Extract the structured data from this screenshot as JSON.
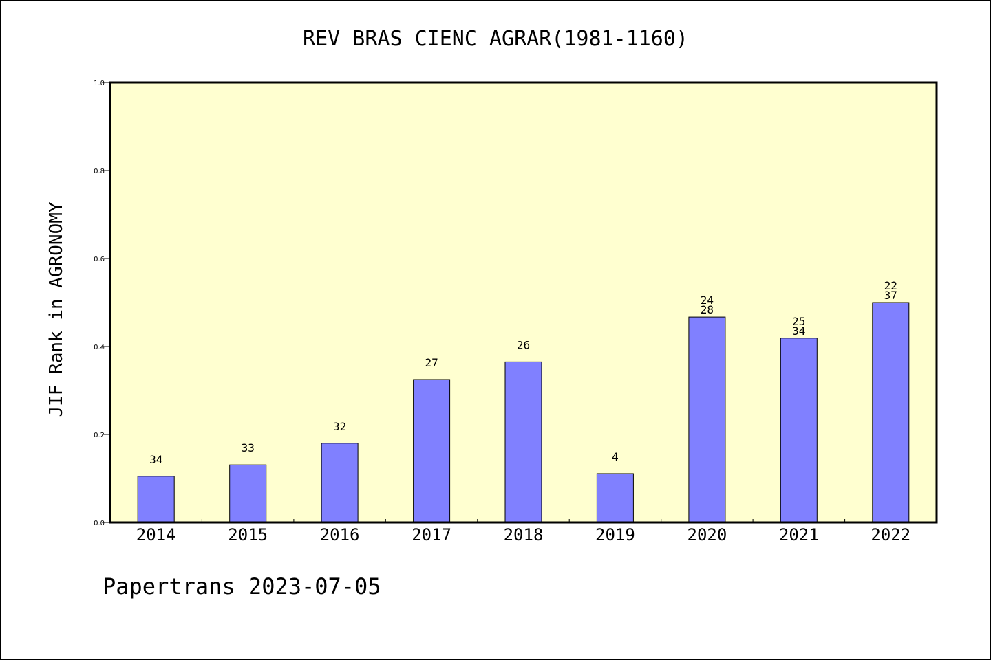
{
  "chart_data": {
    "type": "bar",
    "title": "REV BRAS CIENC AGRAR(1981-1160)",
    "xlabel": "",
    "ylabel": "JIF Rank in AGRONOMY",
    "ylim": [
      0,
      1.0
    ],
    "yticks": [
      "0.0",
      "0.2",
      "0.4",
      "0.6",
      "0.8",
      "1.0"
    ],
    "grid": false,
    "categories": [
      "2014",
      "2015",
      "2016",
      "2017",
      "2018",
      "2019",
      "2020",
      "2021",
      "2022"
    ],
    "values": [
      0.105,
      0.131,
      0.18,
      0.325,
      0.365,
      0.111,
      0.467,
      0.419,
      0.5
    ],
    "bar_labels": [
      [
        "34"
      ],
      [
        "33"
      ],
      [
        "32"
      ],
      [
        "27"
      ],
      [
        "26"
      ],
      [
        "4"
      ],
      [
        "24",
        "28"
      ],
      [
        "25",
        "34"
      ],
      [
        "22",
        "37"
      ]
    ],
    "colors": {
      "bar": "#8080ff",
      "plot_bg": "#ffffd0",
      "axis": "#000000"
    }
  },
  "footer": {
    "text": "Papertrans 2023-07-05"
  }
}
